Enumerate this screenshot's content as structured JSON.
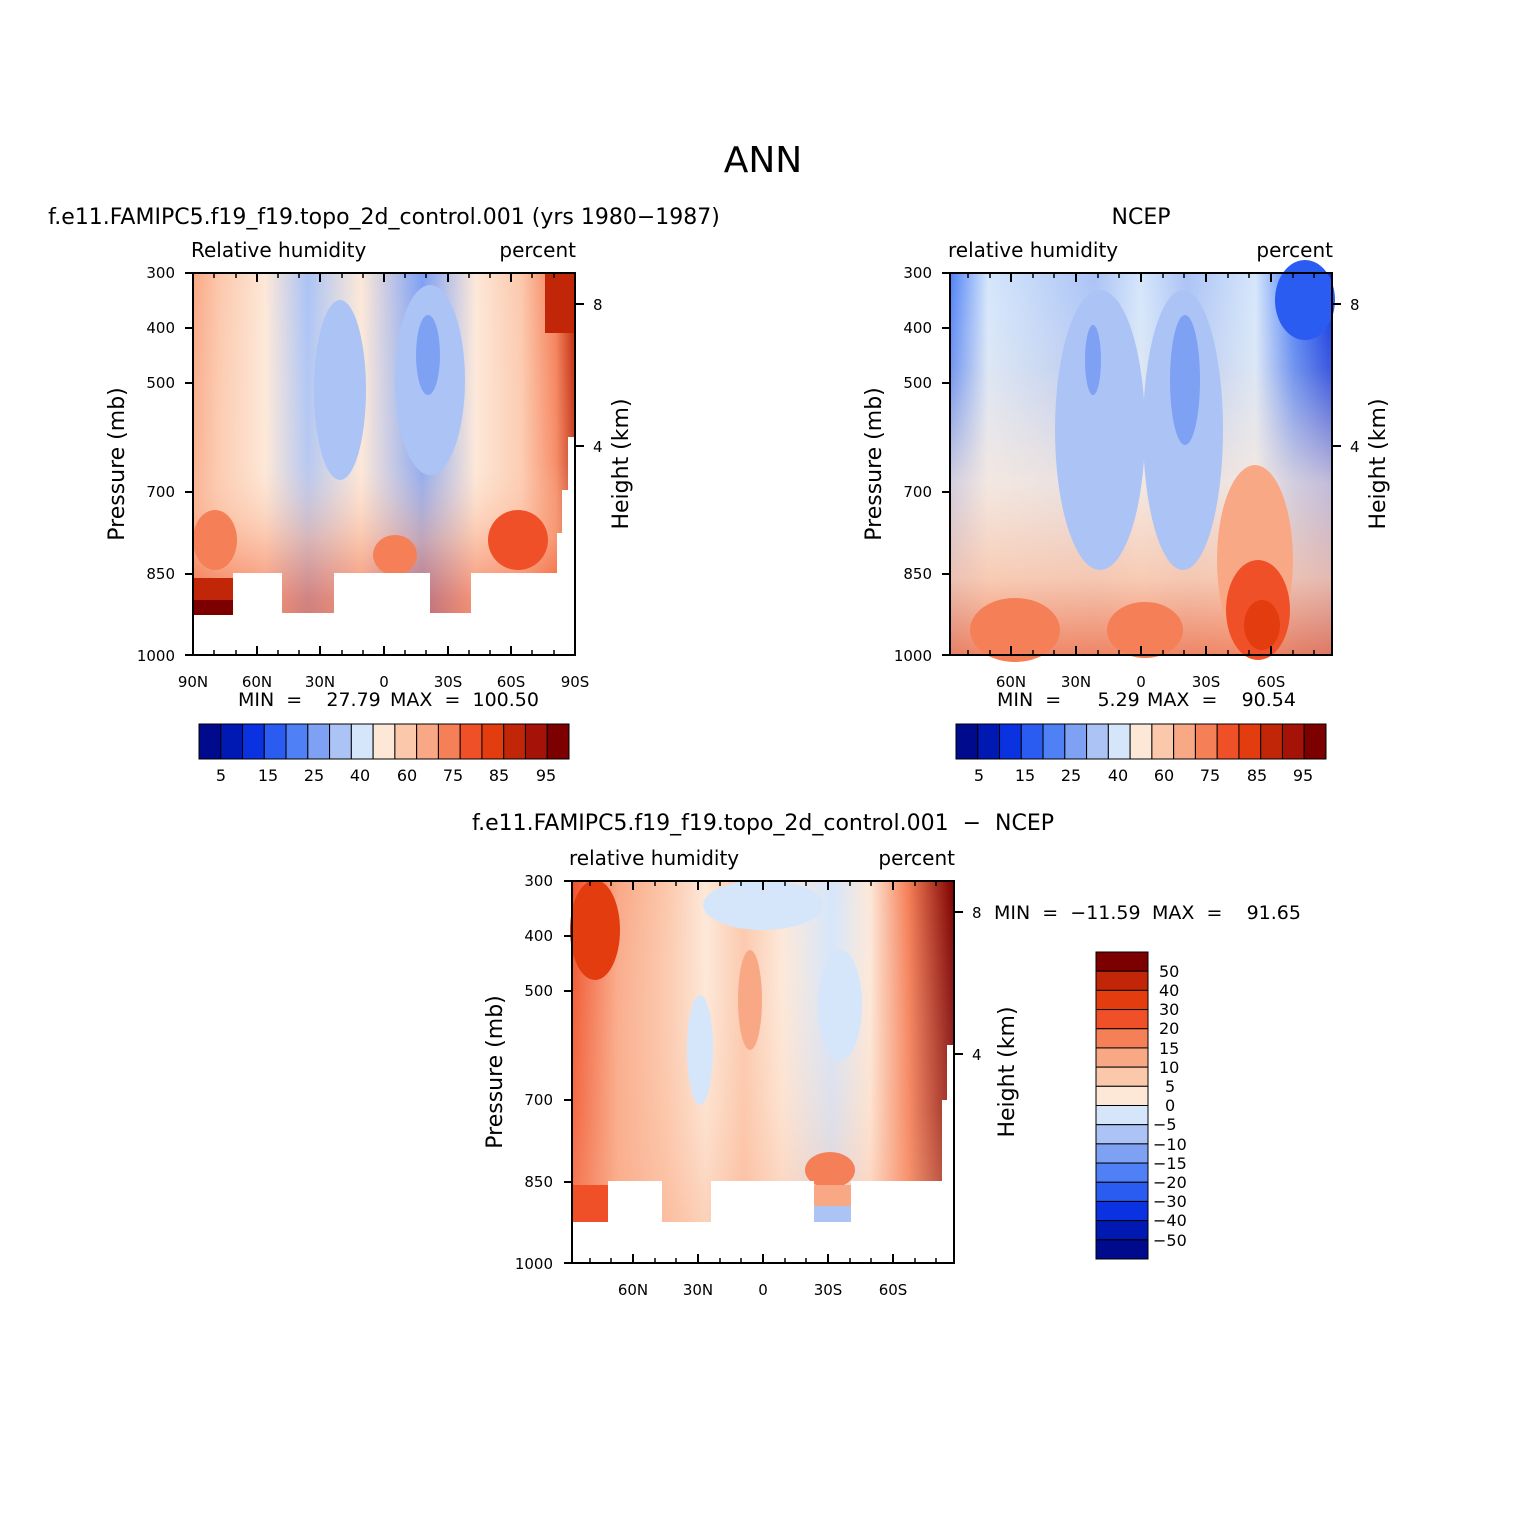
{
  "figure_title": "ANN",
  "colors": {
    "rh_palette": [
      "#000a8c",
      "#0019b3",
      "#0a32e0",
      "#2a5cf2",
      "#4f80f5",
      "#7ea1f4",
      "#abc3f5",
      "#d5e6fb",
      "#fde8d8",
      "#fcc8ac",
      "#f9a886",
      "#f57f57",
      "#f05028",
      "#e33d0f",
      "#c02607",
      "#a51208",
      "#7d0000"
    ],
    "diff_palette": [
      "#000a8c",
      "#0019b3",
      "#0a32e0",
      "#2a5cf2",
      "#4f80f5",
      "#7ea1f4",
      "#abc3f5",
      "#d5e6fb",
      "#fde8d8",
      "#fcc8ac",
      "#f9a886",
      "#f57f57",
      "#f05028",
      "#e33d0f",
      "#c02607",
      "#7d0000"
    ]
  },
  "chart_data": [
    {
      "type": "contour",
      "title": "f.e11.FAMIPC5.f19_f19.topo_2d_control.001 (yrs 1980−1987)",
      "variable_label": "Relative  humidity",
      "units_label": "percent",
      "ylabel": "Pressure  (mb)",
      "y2label": "Height  (km)",
      "y_ticks": [
        "300",
        "400",
        "500",
        "700",
        "850",
        "1000"
      ],
      "height_ticks": [
        "8",
        "4"
      ],
      "x_ticks": [
        "90N",
        "60N",
        "30N",
        "0",
        "30S",
        "60S",
        "90S"
      ],
      "min_text": "MIN  =    27.79",
      "max_text": "MAX  =  100.50",
      "colorbar_labels": [
        "5",
        "15",
        "25",
        "40",
        "60",
        "75",
        "85",
        "95"
      ]
    },
    {
      "type": "contour",
      "title": "NCEP",
      "variable_label": "relative  humidity",
      "units_label": "percent",
      "ylabel": "Pressure  (mb)",
      "y2label": "Height  (km)",
      "y_ticks": [
        "300",
        "400",
        "500",
        "700",
        "850",
        "1000"
      ],
      "height_ticks": [
        "8",
        "4"
      ],
      "x_ticks": [
        "60N",
        "30N",
        "0",
        "30S",
        "60S"
      ],
      "min_text": "MIN  =      5.29",
      "max_text": "MAX  =    90.54",
      "colorbar_labels": [
        "5",
        "15",
        "25",
        "40",
        "60",
        "75",
        "85",
        "95"
      ]
    },
    {
      "type": "contour",
      "title": "f.e11.FAMIPC5.f19_f19.topo_2d_control.001  −  NCEP",
      "variable_label": "relative  humidity",
      "units_label": "percent",
      "ylabel": "Pressure  (mb)",
      "y2label": "Height  (km)",
      "y_ticks": [
        "300",
        "400",
        "500",
        "700",
        "850",
        "1000"
      ],
      "height_ticks": [
        "8",
        "4"
      ],
      "x_ticks": [
        "60N",
        "30N",
        "0",
        "30S",
        "60S"
      ],
      "min_text": "MIN  =  −11.59",
      "max_text": "MAX  =    91.65",
      "colorbar_labels": [
        "50",
        "40",
        "30",
        "20",
        "15",
        "10",
        "5",
        "0",
        "−5",
        "−10",
        "−15",
        "−20",
        "−30",
        "−40",
        "−50"
      ]
    }
  ]
}
